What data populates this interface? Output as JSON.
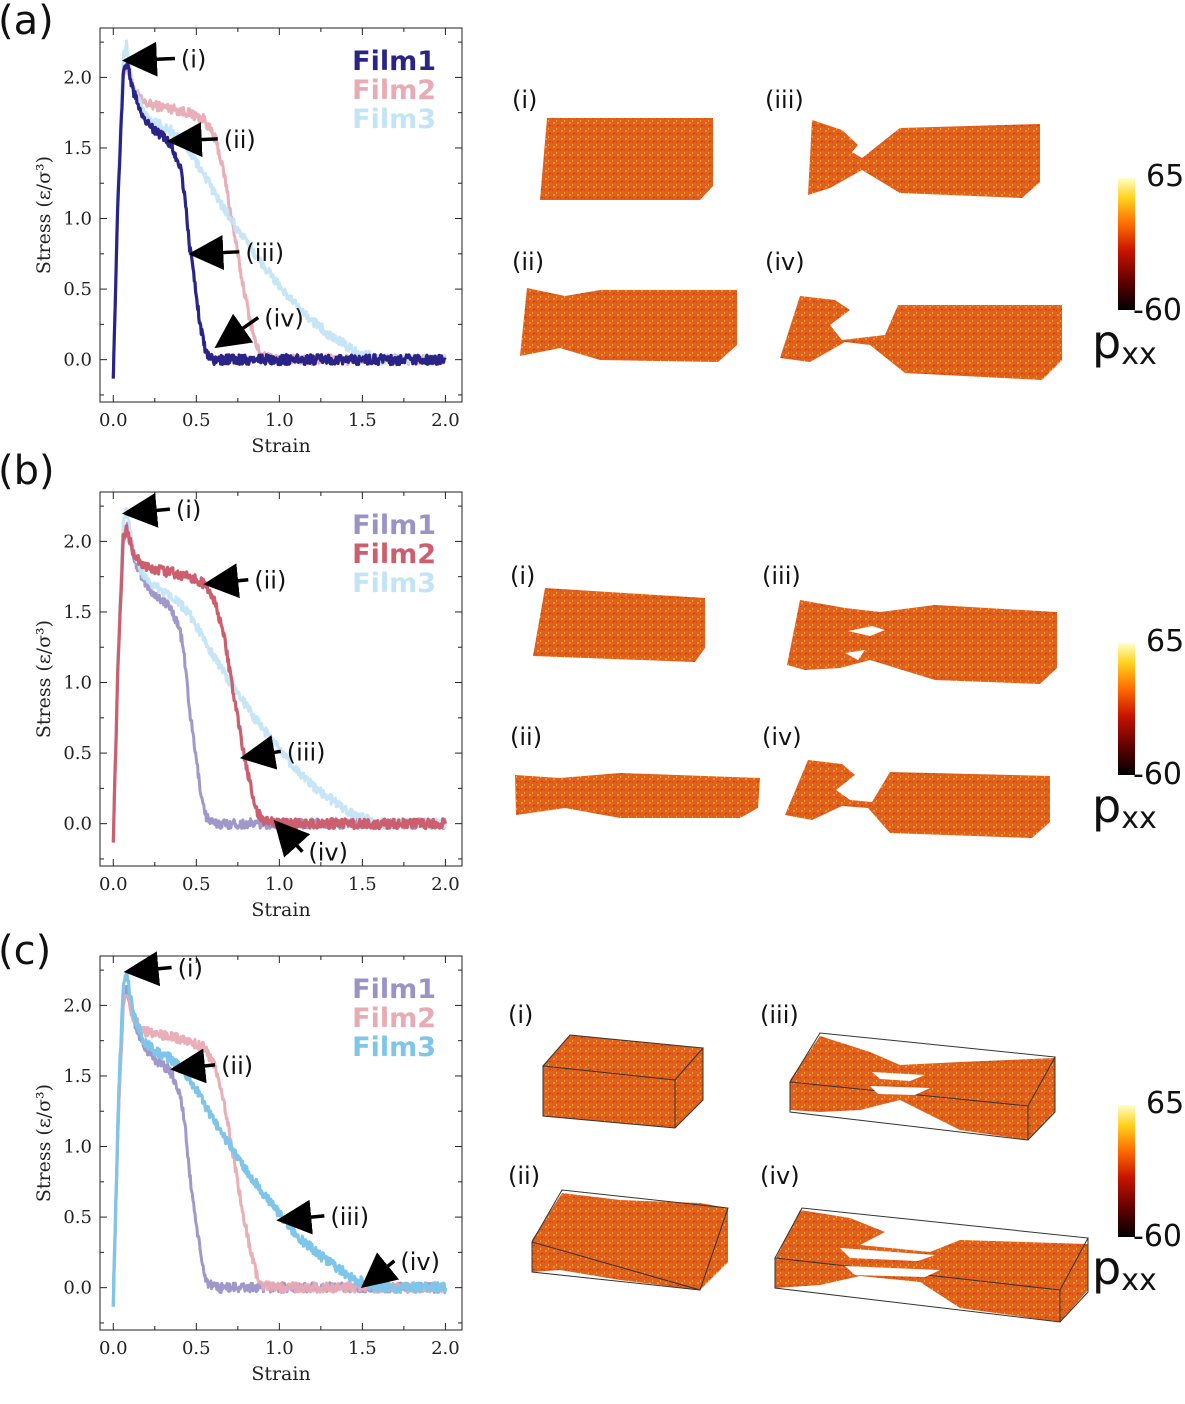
{
  "colors": {
    "film1_strong": "#2b2488",
    "film1_faded": "#9b92c8",
    "film2_strong": "#cc5e6e",
    "film2_faded": "#e8aab4",
    "film3_strong": "#7ec5ea",
    "film3_faded": "#c3e4f5",
    "material": "#e0601c",
    "arrow": "#000000"
  },
  "colorbar": {
    "max_label": "65",
    "min_label": "-60",
    "title_main": "p",
    "title_sub": "xx",
    "gradient": [
      "#000000",
      "#5a0000",
      "#c81400",
      "#ff6a00",
      "#ffd21e",
      "#ffffc8"
    ]
  },
  "chart_data": [
    {
      "type": "line",
      "panel_label": "(a)",
      "xlabel": "Strain",
      "ylabel": "Stress (ε/σ³)",
      "xlim": [
        -0.08,
        2.1
      ],
      "ylim": [
        -0.3,
        2.35
      ],
      "xticks": [
        "0.0",
        "0.5",
        "1.0",
        "1.5",
        "2.0"
      ],
      "yticks": [
        "0.0",
        "0.5",
        "1.0",
        "1.5",
        "2.0"
      ],
      "highlight": "Film1",
      "legend": [
        "Film1",
        "Film2",
        "Film3"
      ],
      "series": [
        {
          "name": "Film1",
          "x": [
            0.0,
            0.03,
            0.06,
            0.08,
            0.12,
            0.18,
            0.25,
            0.3,
            0.35,
            0.4,
            0.42,
            0.44,
            0.46,
            0.5,
            0.53,
            0.56,
            0.6,
            0.7,
            1.0,
            1.5,
            2.0
          ],
          "y": [
            -0.1,
            1.2,
            2.0,
            2.12,
            1.9,
            1.72,
            1.62,
            1.58,
            1.52,
            1.38,
            1.25,
            1.05,
            0.8,
            0.45,
            0.2,
            0.05,
            0.0,
            0.0,
            0.0,
            0.0,
            0.0
          ]
        },
        {
          "name": "Film2",
          "x": [
            0.0,
            0.03,
            0.06,
            0.08,
            0.12,
            0.18,
            0.25,
            0.35,
            0.45,
            0.55,
            0.62,
            0.67,
            0.72,
            0.77,
            0.82,
            0.86,
            0.9,
            1.0,
            1.5,
            2.0
          ],
          "y": [
            -0.1,
            1.2,
            2.02,
            2.1,
            1.92,
            1.82,
            1.8,
            1.78,
            1.75,
            1.7,
            1.55,
            1.3,
            0.95,
            0.6,
            0.3,
            0.1,
            0.02,
            0.0,
            0.0,
            0.0
          ]
        },
        {
          "name": "Film3",
          "x": [
            0.0,
            0.03,
            0.06,
            0.08,
            0.12,
            0.18,
            0.25,
            0.35,
            0.45,
            0.55,
            0.65,
            0.75,
            0.85,
            0.95,
            1.05,
            1.15,
            1.3,
            1.45,
            1.55,
            1.6,
            1.8,
            2.0
          ],
          "y": [
            -0.1,
            1.3,
            2.15,
            2.24,
            1.95,
            1.75,
            1.68,
            1.62,
            1.5,
            1.3,
            1.1,
            0.92,
            0.75,
            0.6,
            0.45,
            0.32,
            0.18,
            0.06,
            0.02,
            0.0,
            0.0,
            0.0
          ]
        }
      ],
      "annotations": [
        {
          "text": "(i)",
          "x": 0.07,
          "y": 2.12
        },
        {
          "text": "(ii)",
          "x": 0.34,
          "y": 1.55
        },
        {
          "text": "(iii)",
          "x": 0.47,
          "y": 0.75
        },
        {
          "text": "(iv)",
          "x": 0.62,
          "y": 0.1
        }
      ]
    },
    {
      "type": "line",
      "panel_label": "(b)",
      "xlabel": "Strain",
      "ylabel": "Stress (ε/σ³)",
      "xlim": [
        -0.08,
        2.1
      ],
      "ylim": [
        -0.3,
        2.35
      ],
      "xticks": [
        "0.0",
        "0.5",
        "1.0",
        "1.5",
        "2.0"
      ],
      "yticks": [
        "0.0",
        "0.5",
        "1.0",
        "1.5",
        "2.0"
      ],
      "highlight": "Film2",
      "legend": [
        "Film1",
        "Film2",
        "Film3"
      ],
      "series": [
        {
          "name": "Film1",
          "x": [
            0.0,
            0.03,
            0.06,
            0.08,
            0.12,
            0.18,
            0.25,
            0.3,
            0.35,
            0.4,
            0.42,
            0.44,
            0.46,
            0.5,
            0.53,
            0.56,
            0.6,
            0.7,
            1.0,
            1.5,
            2.0
          ],
          "y": [
            -0.1,
            1.2,
            2.0,
            2.12,
            1.9,
            1.72,
            1.62,
            1.58,
            1.52,
            1.38,
            1.25,
            1.05,
            0.8,
            0.45,
            0.2,
            0.05,
            0.0,
            0.0,
            0.0,
            0.0,
            0.0
          ]
        },
        {
          "name": "Film2",
          "x": [
            0.0,
            0.03,
            0.06,
            0.08,
            0.12,
            0.18,
            0.25,
            0.35,
            0.45,
            0.55,
            0.62,
            0.67,
            0.72,
            0.77,
            0.82,
            0.86,
            0.9,
            1.0,
            1.5,
            2.0
          ],
          "y": [
            -0.1,
            1.2,
            2.02,
            2.1,
            1.92,
            1.82,
            1.8,
            1.78,
            1.75,
            1.7,
            1.55,
            1.3,
            0.95,
            0.6,
            0.3,
            0.1,
            0.02,
            0.0,
            0.0,
            0.0
          ]
        },
        {
          "name": "Film3",
          "x": [
            0.0,
            0.03,
            0.06,
            0.08,
            0.12,
            0.18,
            0.25,
            0.35,
            0.45,
            0.55,
            0.65,
            0.75,
            0.85,
            0.95,
            1.05,
            1.15,
            1.3,
            1.45,
            1.55,
            1.6,
            1.8,
            2.0
          ],
          "y": [
            -0.1,
            1.3,
            2.15,
            2.24,
            1.95,
            1.75,
            1.68,
            1.62,
            1.5,
            1.3,
            1.1,
            0.92,
            0.75,
            0.6,
            0.45,
            0.32,
            0.18,
            0.06,
            0.02,
            0.0,
            0.0,
            0.0
          ]
        }
      ],
      "annotations": [
        {
          "text": "(i)",
          "x": 0.07,
          "y": 2.2
        },
        {
          "text": "(ii)",
          "x": 0.56,
          "y": 1.7
        },
        {
          "text": "(iii)",
          "x": 0.78,
          "y": 0.47
        },
        {
          "text": "(iv)",
          "x": 0.97,
          "y": 0.0
        }
      ]
    },
    {
      "type": "line",
      "panel_label": "(c)",
      "xlabel": "Strain",
      "ylabel": "Stress (ε/σ³)",
      "xlim": [
        -0.08,
        2.1
      ],
      "ylim": [
        -0.3,
        2.35
      ],
      "xticks": [
        "0.0",
        "0.5",
        "1.0",
        "1.5",
        "2.0"
      ],
      "yticks": [
        "0.0",
        "0.5",
        "1.0",
        "1.5",
        "2.0"
      ],
      "highlight": "Film3",
      "legend": [
        "Film1",
        "Film2",
        "Film3"
      ],
      "series": [
        {
          "name": "Film1",
          "x": [
            0.0,
            0.03,
            0.06,
            0.08,
            0.12,
            0.18,
            0.25,
            0.3,
            0.35,
            0.4,
            0.42,
            0.44,
            0.46,
            0.5,
            0.53,
            0.56,
            0.6,
            0.7,
            1.0,
            1.5,
            2.0
          ],
          "y": [
            -0.1,
            1.2,
            2.0,
            2.12,
            1.9,
            1.72,
            1.62,
            1.58,
            1.52,
            1.38,
            1.25,
            1.05,
            0.8,
            0.45,
            0.2,
            0.05,
            0.0,
            0.0,
            0.0,
            0.0,
            0.0
          ]
        },
        {
          "name": "Film2",
          "x": [
            0.0,
            0.03,
            0.06,
            0.08,
            0.12,
            0.18,
            0.25,
            0.35,
            0.45,
            0.55,
            0.62,
            0.67,
            0.72,
            0.77,
            0.82,
            0.86,
            0.9,
            1.0,
            1.5,
            2.0
          ],
          "y": [
            -0.1,
            1.2,
            2.02,
            2.1,
            1.92,
            1.82,
            1.8,
            1.78,
            1.75,
            1.7,
            1.55,
            1.3,
            0.95,
            0.6,
            0.3,
            0.1,
            0.02,
            0.0,
            0.0,
            0.0
          ]
        },
        {
          "name": "Film3",
          "x": [
            0.0,
            0.03,
            0.06,
            0.08,
            0.12,
            0.18,
            0.25,
            0.35,
            0.45,
            0.55,
            0.65,
            0.75,
            0.85,
            0.95,
            1.05,
            1.15,
            1.3,
            1.45,
            1.55,
            1.6,
            1.8,
            2.0
          ],
          "y": [
            -0.1,
            1.3,
            2.15,
            2.24,
            1.95,
            1.75,
            1.68,
            1.62,
            1.5,
            1.3,
            1.1,
            0.92,
            0.75,
            0.6,
            0.45,
            0.32,
            0.18,
            0.06,
            0.02,
            0.0,
            0.0,
            0.0
          ]
        }
      ],
      "annotations": [
        {
          "text": "(i)",
          "x": 0.08,
          "y": 2.24
        },
        {
          "text": "(ii)",
          "x": 0.36,
          "y": 1.55
        },
        {
          "text": "(iii)",
          "x": 1.0,
          "y": 0.48
        },
        {
          "text": "(iv)",
          "x": 1.5,
          "y": 0.02
        }
      ]
    }
  ],
  "snapshots": [
    {
      "panel": "(a)",
      "labels": [
        "(i)",
        "(ii)",
        "(iii)",
        "(iv)"
      ]
    },
    {
      "panel": "(b)",
      "labels": [
        "(i)",
        "(ii)",
        "(iii)",
        "(iv)"
      ]
    },
    {
      "panel": "(c)",
      "labels": [
        "(i)",
        "(ii)",
        "(iii)",
        "(iv)"
      ]
    }
  ]
}
